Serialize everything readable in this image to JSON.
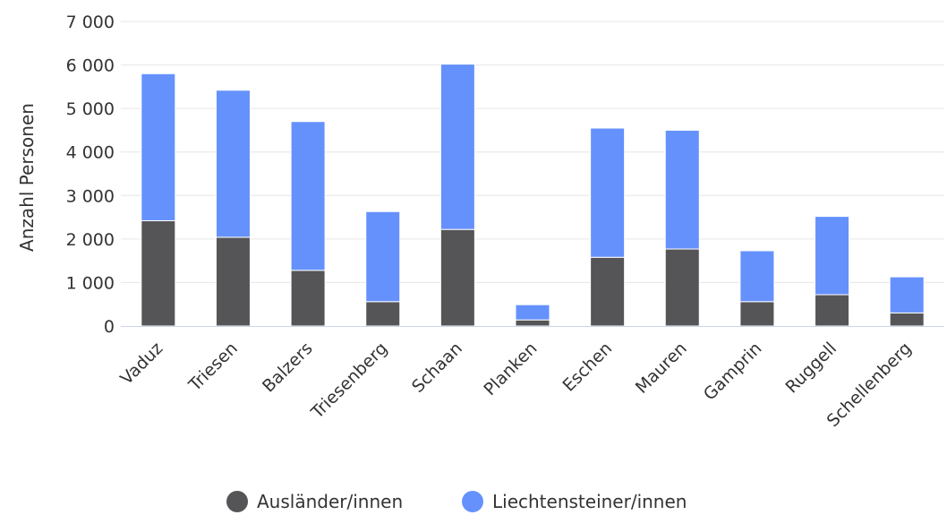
{
  "chart_data": {
    "type": "bar",
    "stacked": true,
    "categories": [
      "Vaduz",
      "Triesen",
      "Balzers",
      "Triesenberg",
      "Schaan",
      "Planken",
      "Eschen",
      "Mauren",
      "Gamprin",
      "Ruggell",
      "Schellenberg"
    ],
    "series": [
      {
        "name": "Ausländer/innen",
        "color": "#555558",
        "values": [
          2420,
          2040,
          1280,
          560,
          2220,
          140,
          1580,
          1770,
          560,
          720,
          300
        ]
      },
      {
        "name": "Liechtensteiner/innen",
        "color": "#6591fc",
        "values": [
          3380,
          3380,
          3420,
          2070,
          3800,
          350,
          2970,
          2730,
          1170,
          1800,
          830
        ]
      }
    ],
    "ylabel": "Anzahl Personen",
    "ylim": [
      0,
      7000
    ],
    "yticks": [
      0,
      1000,
      2000,
      3000,
      4000,
      5000,
      6000,
      7000
    ],
    "ytick_labels": [
      "0",
      "1 000",
      "2 000",
      "3 000",
      "4 000",
      "5 000",
      "6 000",
      "7 000"
    ],
    "grid": true,
    "legend_position": "bottom"
  }
}
